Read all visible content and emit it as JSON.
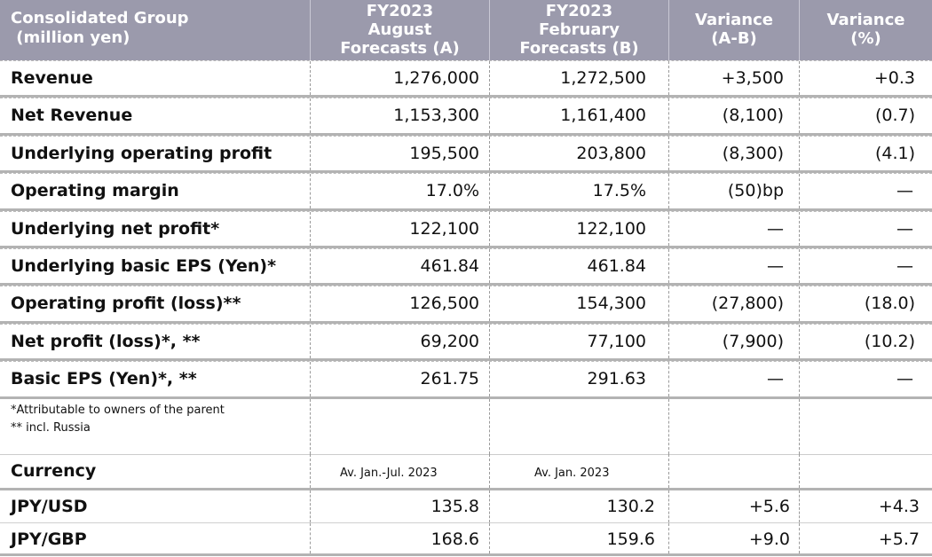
{
  "header": {
    "col1": [
      "Consolidated Group",
      " (million yen)"
    ],
    "col2": [
      "FY2023",
      "August",
      "Forecasts (A)"
    ],
    "col3": [
      "FY2023",
      "February",
      "Forecasts (B)"
    ],
    "col4": [
      "Variance",
      "(A-B)"
    ],
    "col5": [
      "Variance",
      "(%)"
    ]
  },
  "rows": [
    {
      "label": "Revenue",
      "a": "1,276,000",
      "b": "1,272,500",
      "var": "+3,500",
      "pct": "+0.3"
    },
    {
      "label": "Net Revenue",
      "a": "1,153,300",
      "b": "1,161,400",
      "var": "(8,100)",
      "pct": "(0.7)"
    },
    {
      "label": "Underlying operating profit",
      "a": "195,500",
      "b": "203,800",
      "var": "(8,300)",
      "pct": "(4.1)"
    },
    {
      "label": "Operating margin",
      "a": "17.0%",
      "b": "17.5%",
      "var": "(50)bp",
      "pct": "—"
    },
    {
      "label": "Underlying net profit*",
      "a": "122,100",
      "b": "122,100",
      "var": "—",
      "pct": "—"
    },
    {
      "label": "Underlying basic EPS (Yen)*",
      "a": "461.84",
      "b": "461.84",
      "var": "—",
      "pct": "—"
    },
    {
      "label": "Operating profit (loss)**",
      "a": "126,500",
      "b": "154,300",
      "var": "(27,800)",
      "pct": "(18.0)"
    },
    {
      "label": "Net profit (loss)*, **",
      "a": "69,200",
      "b": "77,100",
      "var": "(7,900)",
      "pct": "(10.2)"
    },
    {
      "label": "Basic EPS (Yen)*, **",
      "a": "261.75",
      "b": "291.63",
      "var": "—",
      "pct": "—"
    }
  ],
  "notes": [
    "*Attributable to owners of the parent",
    "** incl. Russia"
  ],
  "currency": {
    "label": "Currency",
    "a": "Av. Jan.-Jul. 2023",
    "b": "Av. Jan. 2023"
  },
  "fx": [
    {
      "label": "JPY/USD",
      "a": "135.8",
      "b": "130.2",
      "var": "+5.6",
      "pct": "+4.3"
    },
    {
      "label": "JPY/GBP",
      "a": "168.6",
      "b": "159.6",
      "var": "+9.0",
      "pct": "+5.7"
    }
  ]
}
